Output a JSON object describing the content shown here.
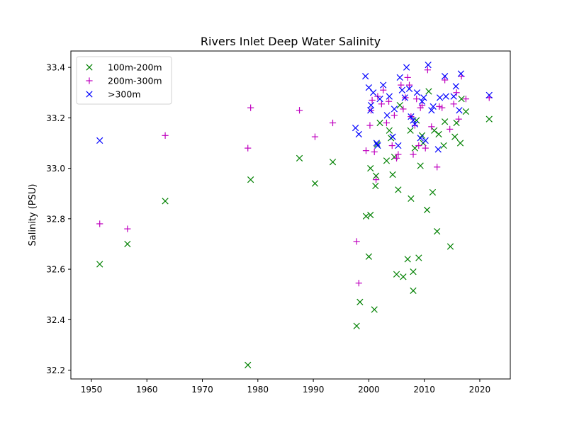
{
  "chart_data": {
    "type": "scatter",
    "title": "Rivers Inlet Deep Water Salinity",
    "xlabel": "",
    "ylabel": "Salinity (PSU)",
    "xlim": [
      1946.3,
      2025.5
    ],
    "ylim": [
      32.165,
      33.465
    ],
    "xticks": [
      1950,
      1960,
      1970,
      1980,
      1990,
      2000,
      2010,
      2020
    ],
    "yticks": [
      32.2,
      32.4,
      32.6,
      32.8,
      33.0,
      33.2,
      33.4
    ],
    "ytick_labels": [
      "32.2",
      "32.4",
      "32.6",
      "32.8",
      "33.0",
      "33.2",
      "33.4"
    ],
    "grid": false,
    "legend_position": "top-left",
    "series": [
      {
        "name": "100m-200m",
        "marker": "x",
        "color": "#008000",
        "points": [
          [
            1951.5,
            32.62
          ],
          [
            1956.5,
            32.7
          ],
          [
            1963.3,
            32.87
          ],
          [
            1978.2,
            32.22
          ],
          [
            1978.7,
            32.955
          ],
          [
            1987.5,
            33.04
          ],
          [
            1990.3,
            32.94
          ],
          [
            1993.5,
            33.025
          ],
          [
            1997.8,
            32.375
          ],
          [
            1998.4,
            32.47
          ],
          [
            1999.5,
            32.81
          ],
          [
            2000.0,
            32.65
          ],
          [
            2000.3,
            32.815
          ],
          [
            2000.3,
            33.0
          ],
          [
            2001.0,
            32.44
          ],
          [
            2001.2,
            32.93
          ],
          [
            2001.3,
            32.97
          ],
          [
            2001.5,
            33.095
          ],
          [
            2002.0,
            33.18
          ],
          [
            2003.2,
            33.03
          ],
          [
            2003.7,
            33.15
          ],
          [
            2004.0,
            33.12
          ],
          [
            2004.3,
            32.975
          ],
          [
            2004.6,
            33.045
          ],
          [
            2005.0,
            32.58
          ],
          [
            2005.3,
            32.915
          ],
          [
            2005.6,
            33.25
          ],
          [
            2006.2,
            32.57
          ],
          [
            2007.0,
            32.64
          ],
          [
            2007.5,
            33.15
          ],
          [
            2007.6,
            32.88
          ],
          [
            2008.0,
            32.59
          ],
          [
            2008.0,
            32.515
          ],
          [
            2008.3,
            33.08
          ],
          [
            2008.6,
            33.19
          ],
          [
            2009.0,
            32.645
          ],
          [
            2009.3,
            33.01
          ],
          [
            2009.6,
            33.13
          ],
          [
            2009.8,
            33.1
          ],
          [
            2010.5,
            32.835
          ],
          [
            2010.8,
            33.305
          ],
          [
            2011.5,
            32.905
          ],
          [
            2011.8,
            33.15
          ],
          [
            2012.3,
            32.75
          ],
          [
            2012.6,
            33.135
          ],
          [
            2013.5,
            33.09
          ],
          [
            2013.7,
            33.185
          ],
          [
            2014.7,
            32.69
          ],
          [
            2015.5,
            33.125
          ],
          [
            2015.8,
            33.18
          ],
          [
            2016.5,
            33.1
          ],
          [
            2016.7,
            33.275
          ],
          [
            2017.5,
            33.225
          ],
          [
            2021.7,
            33.195
          ]
        ]
      },
      {
        "name": "200m-300m",
        "marker": "+",
        "color": "#bf00bf",
        "points": [
          [
            1951.5,
            32.78
          ],
          [
            1956.5,
            32.76
          ],
          [
            1963.3,
            33.13
          ],
          [
            1978.2,
            33.08
          ],
          [
            1978.7,
            33.24
          ],
          [
            1987.5,
            33.23
          ],
          [
            1990.3,
            33.125
          ],
          [
            1993.5,
            33.18
          ],
          [
            1997.8,
            32.71
          ],
          [
            1998.2,
            32.545
          ],
          [
            1999.5,
            33.07
          ],
          [
            2000.2,
            33.17
          ],
          [
            2000.4,
            33.23
          ],
          [
            2000.6,
            33.27
          ],
          [
            2001.0,
            33.065
          ],
          [
            2001.3,
            32.955
          ],
          [
            2001.6,
            33.285
          ],
          [
            2002.3,
            33.255
          ],
          [
            2002.6,
            33.31
          ],
          [
            2003.2,
            33.18
          ],
          [
            2003.6,
            33.265
          ],
          [
            2004.2,
            33.09
          ],
          [
            2004.6,
            33.21
          ],
          [
            2005.0,
            33.04
          ],
          [
            2005.3,
            33.055
          ],
          [
            2005.8,
            33.33
          ],
          [
            2006.2,
            33.235
          ],
          [
            2006.6,
            33.28
          ],
          [
            2007.0,
            33.36
          ],
          [
            2007.3,
            33.33
          ],
          [
            2007.6,
            33.205
          ],
          [
            2008.0,
            33.055
          ],
          [
            2008.3,
            33.17
          ],
          [
            2008.6,
            33.275
          ],
          [
            2009.0,
            33.09
          ],
          [
            2009.3,
            33.24
          ],
          [
            2009.6,
            33.25
          ],
          [
            2010.2,
            33.08
          ],
          [
            2010.6,
            33.39
          ],
          [
            2011.3,
            33.165
          ],
          [
            2012.3,
            33.005
          ],
          [
            2012.7,
            33.245
          ],
          [
            2013.2,
            33.24
          ],
          [
            2013.7,
            33.35
          ],
          [
            2014.6,
            33.155
          ],
          [
            2015.3,
            33.255
          ],
          [
            2015.8,
            33.3
          ],
          [
            2016.2,
            33.195
          ],
          [
            2016.7,
            33.365
          ],
          [
            2017.5,
            33.275
          ],
          [
            2021.7,
            33.28
          ]
        ]
      },
      {
        "name": ">300m",
        "marker": "x",
        "color": "#0000ff",
        "points": [
          [
            1951.5,
            33.11
          ],
          [
            1997.6,
            33.16
          ],
          [
            1998.2,
            33.135
          ],
          [
            1999.4,
            33.365
          ],
          [
            2000.0,
            33.32
          ],
          [
            2000.3,
            33.23
          ],
          [
            2000.4,
            33.25
          ],
          [
            2000.8,
            33.3
          ],
          [
            2001.4,
            33.1
          ],
          [
            2001.6,
            33.09
          ],
          [
            2002.0,
            33.275
          ],
          [
            2002.6,
            33.33
          ],
          [
            2003.3,
            33.21
          ],
          [
            2003.7,
            33.285
          ],
          [
            2004.3,
            33.125
          ],
          [
            2004.6,
            33.235
          ],
          [
            2005.3,
            33.09
          ],
          [
            2005.6,
            33.36
          ],
          [
            2006.0,
            33.31
          ],
          [
            2006.5,
            33.28
          ],
          [
            2006.8,
            33.4
          ],
          [
            2007.3,
            33.315
          ],
          [
            2007.6,
            33.205
          ],
          [
            2008.0,
            33.19
          ],
          [
            2008.3,
            33.175
          ],
          [
            2008.7,
            33.3
          ],
          [
            2009.3,
            33.12
          ],
          [
            2009.6,
            33.265
          ],
          [
            2009.9,
            33.28
          ],
          [
            2010.2,
            33.11
          ],
          [
            2010.7,
            33.41
          ],
          [
            2011.3,
            33.23
          ],
          [
            2011.6,
            33.245
          ],
          [
            2012.5,
            33.075
          ],
          [
            2012.8,
            33.28
          ],
          [
            2013.7,
            33.365
          ],
          [
            2013.9,
            33.285
          ],
          [
            2015.3,
            33.285
          ],
          [
            2015.7,
            33.325
          ],
          [
            2016.3,
            33.23
          ],
          [
            2016.6,
            33.375
          ],
          [
            2021.7,
            33.29
          ]
        ]
      }
    ]
  }
}
